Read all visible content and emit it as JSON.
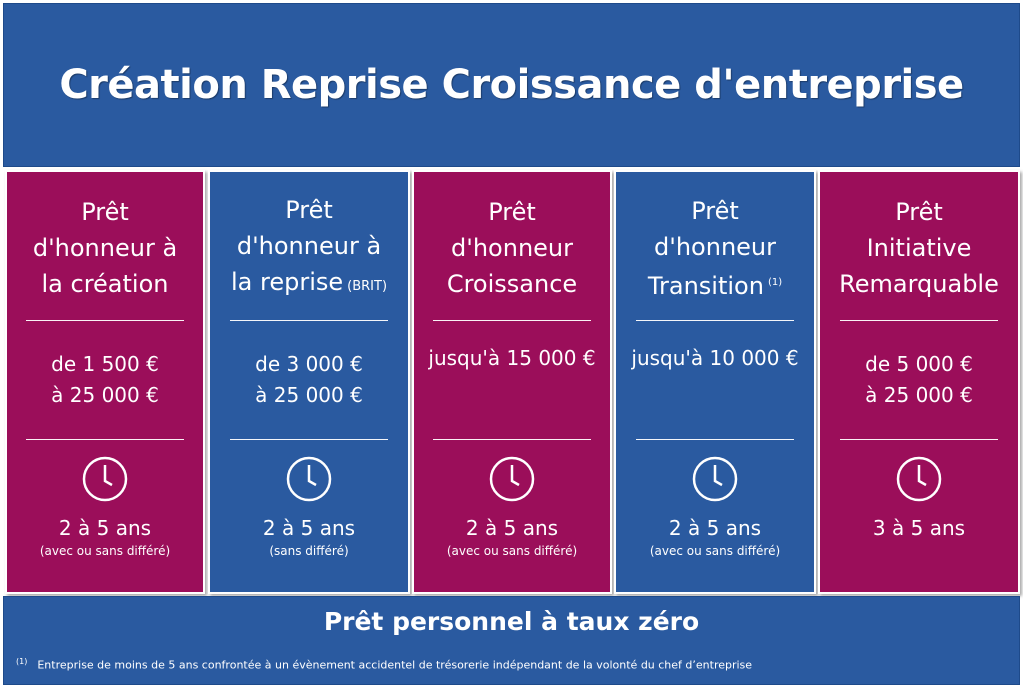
{
  "header": {
    "title": "Création Reprise Croissance d'entreprise"
  },
  "colors": {
    "blue": "#2a5aa0",
    "magenta": "#9b0e5a"
  },
  "cards": [
    {
      "title_lines": [
        "Prêt",
        "d'honneur à",
        "la création"
      ],
      "amount_lines": [
        "de 1 500 €",
        "à 25 000 €"
      ],
      "duration": "2 à 5 ans",
      "condition": "(avec ou sans différé)",
      "icon": "clock-icon"
    },
    {
      "title_lines": [
        "Prêt",
        "d'honneur  à",
        "la reprise"
      ],
      "title_tag": "(BRIT)",
      "amount_lines": [
        "de 3 000 €",
        "à 25 000 €"
      ],
      "duration": "2 à 5 ans",
      "condition": "(sans différé)",
      "icon": "clock-icon"
    },
    {
      "title_lines": [
        "Prêt",
        "d'honneur",
        "Croissance"
      ],
      "amount_lines": [
        "jusqu'à 15 000 €"
      ],
      "duration": "2 à 5 ans",
      "condition": "(avec ou sans différé)",
      "icon": "clock-icon"
    },
    {
      "title_lines": [
        "Prêt",
        "d'honneur",
        "Transition"
      ],
      "title_sup": "(1)",
      "amount_lines": [
        "jusqu'à 10 000 €"
      ],
      "duration": "2 à 5 ans",
      "condition": "(avec ou sans différé)",
      "icon": "clock-icon"
    },
    {
      "title_lines": [
        "Prêt",
        "Initiative",
        "Remarquable"
      ],
      "amount_lines": [
        "de 5 000 €",
        "à 25 000 €"
      ],
      "duration": "3 à 5 ans",
      "icon": "clock-icon"
    }
  ],
  "footer": {
    "title": "Prêt personnel à taux zéro",
    "footnote_mark": "(1)",
    "footnote_text": "Entreprise de moins de 5 ans confrontée à un évènement accidentel de trésorerie indépendant de la volonté du chef d’entreprise"
  }
}
